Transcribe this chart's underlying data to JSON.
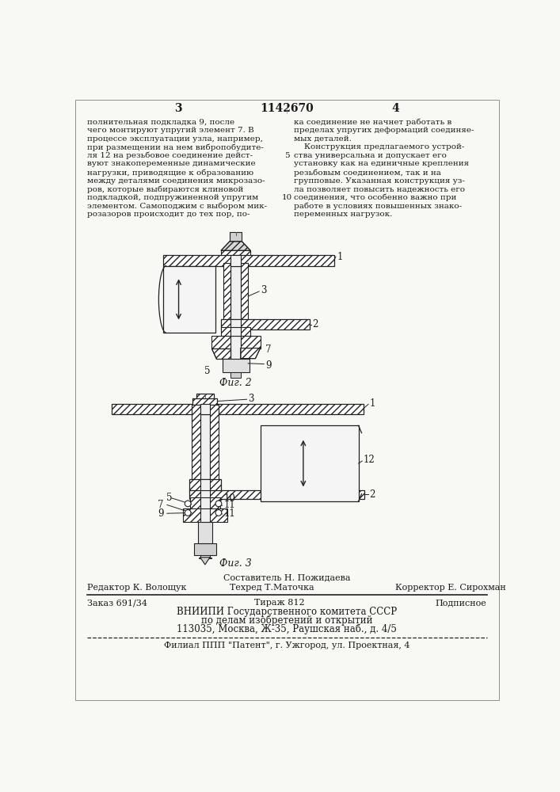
{
  "page_number_left": "3",
  "page_number_right": "4",
  "patent_number": "1142670",
  "bg_color": "#f8f8f4",
  "text_color": "#1a1a1a",
  "col1_text": [
    "полнительная подкладка 9, после",
    "чего монтируют упругий элемент 7. В",
    "процессе эксплуатации узла, например,",
    "при размещении на нем вибропобудите-",
    "ля 12 на резьбовое соединение дейст-",
    "вуют знакопеременные динамические",
    "нагрузки, приводящие к образованию",
    "между деталями соединения микрозазо-",
    "ров, которые выбираются клиновой",
    "подкладкой, подпружиненной упругим",
    "элементом. Самоподжим с выбором мик-",
    "розазоров происходит до тех пор, по-"
  ],
  "col2_text": [
    "ка соединение не начнет работать в",
    "пределах упругих деформаций соединяе-",
    "мых деталей.",
    "    Конструкция предлагаемого устрой-",
    "ства универсальна и допускает его",
    "установку как на единичные крепления",
    "резьбовым соединением, так и на",
    "групповые. Указанная конструкция уз-",
    "ла позволяет повысить надежность его",
    "соединения, что особенно важно при",
    "работе в условиях повышенных знако-",
    "переменных нагрузок."
  ],
  "fig2_caption": "Фиг. 2",
  "fig3_caption": "Фиг. 3",
  "footer_sestavitel": "Составитель Н. Пожидаева",
  "footer_redaktor": "Редактор К. Волощук",
  "footer_tehred": "Техред Т.Маточка",
  "footer_korrektor": "Корректор Е. Сирохман",
  "footer_zakaz": "Заказ 691/34",
  "footer_tirazh": "Тираж 812",
  "footer_podpisnoe": "Подписное",
  "footer_vniiipi": "ВНИИПИ Государственного комитета СССР",
  "footer_dela": "по делам изобретений и открытий",
  "footer_addr": "113035, Москва, Ж-35, Раушская наб., д. 4/5",
  "footer_filial": "Филиал ППП \"Патент\", г. Ужгород, ул. Проектная, 4",
  "hatch_color": "#444444",
  "line_color": "#222222"
}
